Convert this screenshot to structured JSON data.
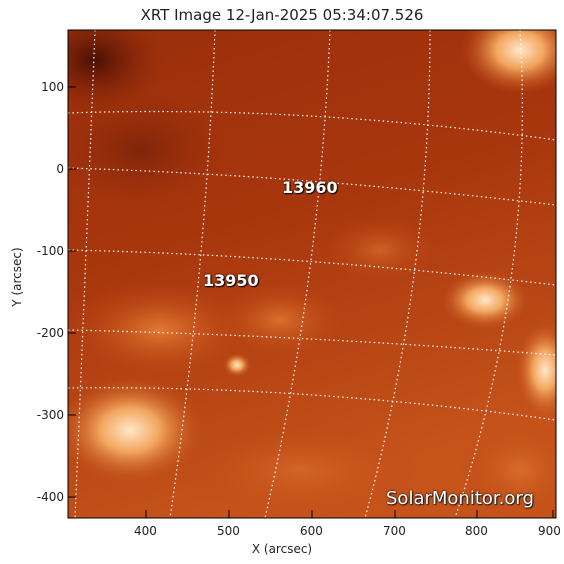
{
  "title": "XRT Image 12-Jan-2025 05:34:07.526",
  "x_axis_label": "X (arcsec)",
  "y_axis_label": "Y (arcsec)",
  "x_ticks": [
    "400",
    "500",
    "600",
    "700",
    "800",
    "900"
  ],
  "y_ticks": [
    "100",
    "0",
    "-100",
    "-200",
    "-300",
    "-400"
  ],
  "active_regions": [
    {
      "number": "13960"
    },
    {
      "number": "13950"
    }
  ],
  "watermark": "SolarMonitor.org",
  "colors": {
    "sun_dark": "#6b1a08",
    "sun_mid": "#b8400e",
    "sun_bright": "#f7c38a",
    "grid": "#ffffff"
  }
}
